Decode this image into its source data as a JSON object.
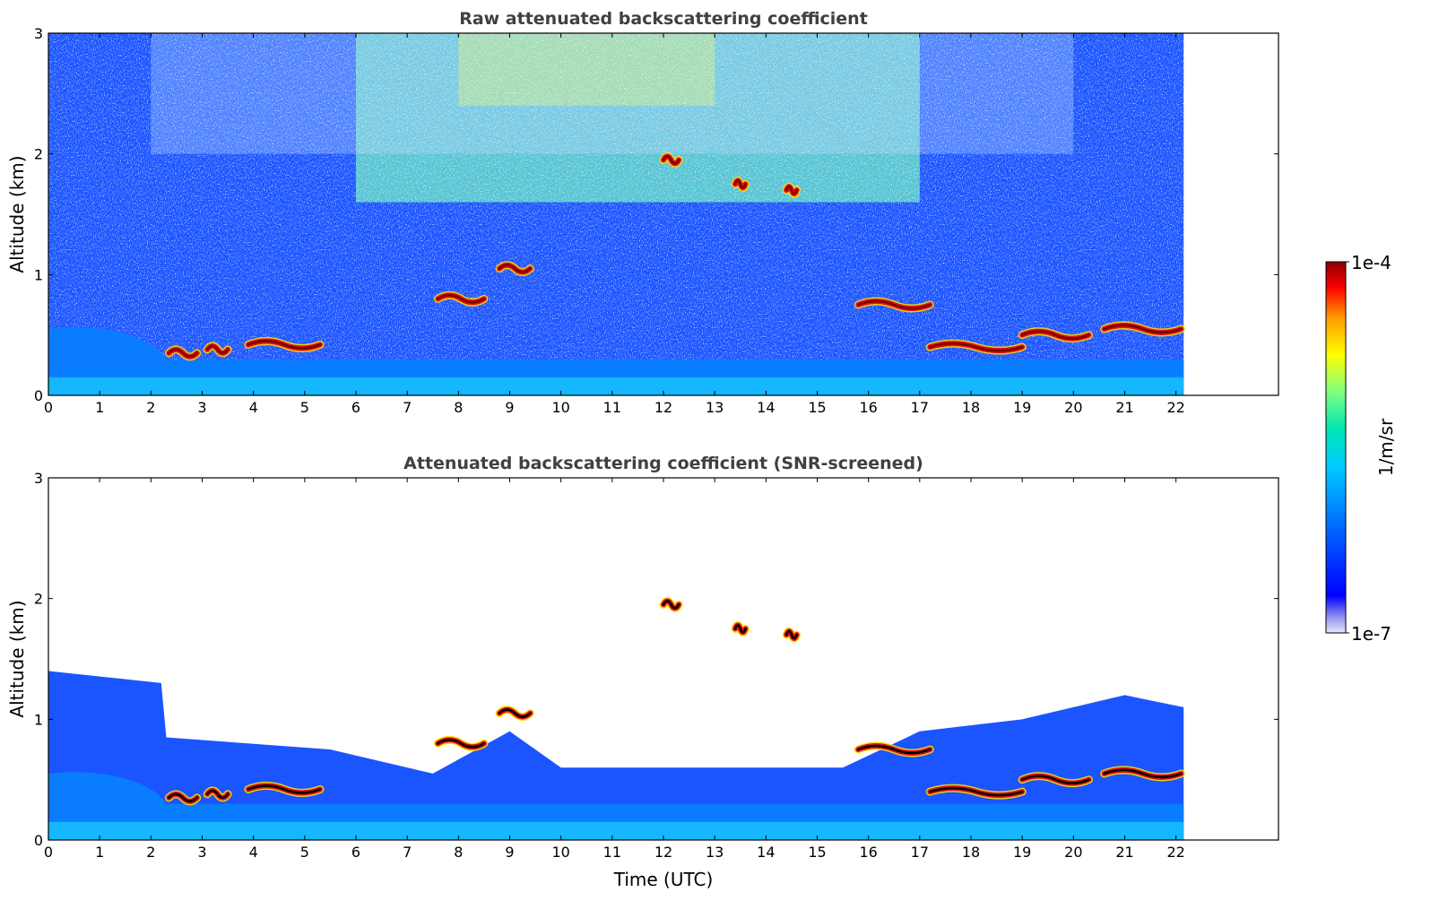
{
  "chart_data": [
    {
      "type": "heatmap",
      "title": "Raw attenuated backscattering coefficient",
      "xlabel": "",
      "ylabel": "Altitude (km)",
      "xlim": [
        0,
        24
      ],
      "ylim": [
        0,
        3
      ],
      "xticks": [
        "0",
        "1",
        "2",
        "3",
        "4",
        "5",
        "6",
        "7",
        "8",
        "9",
        "10",
        "11",
        "12",
        "13",
        "14",
        "15",
        "16",
        "17",
        "18",
        "19",
        "20",
        "21",
        "22"
      ],
      "yticks": [
        "0",
        "1",
        "2",
        "3"
      ],
      "data_end_hour": 22.15,
      "cloud_layers": [
        {
          "t0": 2.35,
          "t1": 2.9,
          "alt": 0.35
        },
        {
          "t0": 3.1,
          "t1": 3.5,
          "alt": 0.38
        },
        {
          "t0": 3.9,
          "t1": 5.3,
          "alt": 0.42
        },
        {
          "t0": 7.6,
          "t1": 8.5,
          "alt": 0.8
        },
        {
          "t0": 8.8,
          "t1": 9.4,
          "alt": 1.05
        },
        {
          "t0": 12.0,
          "t1": 12.3,
          "alt": 1.95
        },
        {
          "t0": 13.4,
          "t1": 13.6,
          "alt": 1.75
        },
        {
          "t0": 14.4,
          "t1": 14.6,
          "alt": 1.7
        },
        {
          "t0": 15.8,
          "t1": 17.2,
          "alt": 0.75
        },
        {
          "t0": 17.2,
          "t1": 19.0,
          "alt": 0.4
        },
        {
          "t0": 19.0,
          "t1": 20.3,
          "alt": 0.5
        },
        {
          "t0": 20.6,
          "t1": 22.1,
          "alt": 0.55
        }
      ]
    },
    {
      "type": "heatmap",
      "title": "Attenuated backscattering coefficient (SNR-screened)",
      "xlabel": "Time (UTC)",
      "ylabel": "Altitude (km)",
      "xlim": [
        0,
        24
      ],
      "ylim": [
        0,
        3
      ],
      "xticks": [
        "0",
        "1",
        "2",
        "3",
        "4",
        "5",
        "6",
        "7",
        "8",
        "9",
        "10",
        "11",
        "12",
        "13",
        "14",
        "15",
        "16",
        "17",
        "18",
        "19",
        "20",
        "21",
        "22"
      ],
      "yticks": [
        "0",
        "1",
        "2",
        "3"
      ],
      "data_end_hour": 22.15,
      "cloud_layers": [
        {
          "t0": 2.35,
          "t1": 2.9,
          "alt": 0.35
        },
        {
          "t0": 3.1,
          "t1": 3.5,
          "alt": 0.38
        },
        {
          "t0": 3.9,
          "t1": 5.3,
          "alt": 0.42
        },
        {
          "t0": 7.6,
          "t1": 8.5,
          "alt": 0.8
        },
        {
          "t0": 8.8,
          "t1": 9.4,
          "alt": 1.05
        },
        {
          "t0": 12.0,
          "t1": 12.3,
          "alt": 1.95
        },
        {
          "t0": 13.4,
          "t1": 13.6,
          "alt": 1.75
        },
        {
          "t0": 14.4,
          "t1": 14.6,
          "alt": 1.7
        },
        {
          "t0": 15.8,
          "t1": 17.2,
          "alt": 0.75
        },
        {
          "t0": 17.2,
          "t1": 19.0,
          "alt": 0.4
        },
        {
          "t0": 19.0,
          "t1": 20.3,
          "alt": 0.5
        },
        {
          "t0": 20.6,
          "t1": 22.1,
          "alt": 0.55
        }
      ]
    }
  ],
  "colorbar": {
    "label": "1/m/sr",
    "max_label": "1e-4",
    "min_label": "1e-7",
    "colors": [
      "#e6e6fa",
      "#9898f0",
      "#0000ff",
      "#0066ff",
      "#00ccff",
      "#00e6b0",
      "#80ff80",
      "#ffff00",
      "#ff9900",
      "#ff0000",
      "#8b0000"
    ]
  }
}
